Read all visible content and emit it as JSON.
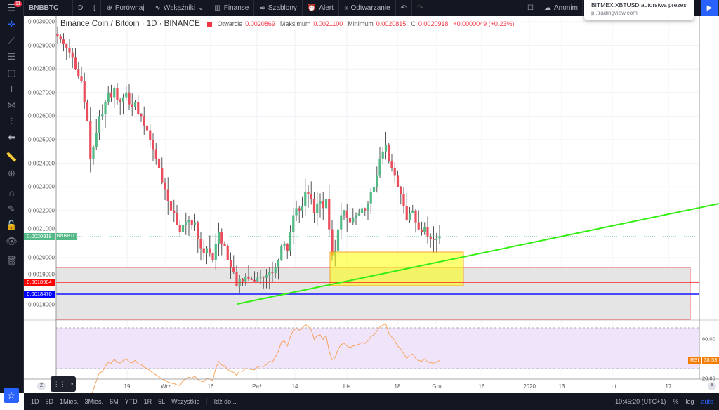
{
  "topbar": {
    "notif_count": "11",
    "symbol": "BNBBTC",
    "interval": "D",
    "compare": "Porównaj",
    "indicators": "Wskaźniki",
    "financials": "Finanse",
    "templates": "Szablony",
    "alert": "Alert",
    "replay": "Odtwarzanie",
    "account": "Anonim"
  },
  "popup": {
    "title": "BITMEX:XBTUSD autorstwa prezes...",
    "url": "pl.tradingview.com"
  },
  "legend": {
    "title": "Binance Coin / Bitcoin · 1D · BINANCE",
    "open_label": "Otwarcie",
    "open": "0.0020869",
    "high_label": "Maksimum",
    "high": "0.0021100",
    "low_label": "Minimum",
    "low": "0.0020815",
    "close_label": "C",
    "close": "0.0020918",
    "change": "+0.0000049 (+0.23%)"
  },
  "price_tags": {
    "last": "0.0020918",
    "symbol": "BNBBTC",
    "red_line": "0.0018984",
    "blue_line": "0.0018470"
  },
  "rsi": {
    "label": "RSI",
    "value": "38.53",
    "scale": [
      "60.00",
      "20.00"
    ]
  },
  "time_axis": {
    "left_btn": "Z",
    "right_btn": "A",
    "labels": [
      "19",
      "Wrz",
      "16",
      "Paź",
      "14",
      "Lis",
      "18",
      "Gru",
      "16",
      "2020",
      "13",
      "Lut",
      "17"
    ]
  },
  "bottombar": {
    "ranges": [
      "1D",
      "5D",
      "1Mies.",
      "3Mies.",
      "6M",
      "YTD",
      "1R",
      "5L",
      "Wszystkie"
    ],
    "goto": "Idź do...",
    "time": "10:45:20 (UTC+1)",
    "percent": "%",
    "log": "log",
    "auto": "auto"
  },
  "colors": {
    "up": "#53b987",
    "down": "#eb4d5c",
    "trend": "#00ff00",
    "red_line": "#ff0000",
    "blue_line": "#0000ff",
    "rect": "#ffff00",
    "accent": "#2962ff"
  },
  "chart_data": {
    "type": "candlestick",
    "title": "Binance Coin / Bitcoin · 1D · BINANCE",
    "ylim": [
      0.00175,
      0.00305
    ],
    "yticks": [
      "0.0030000",
      "0.0029000",
      "0.0028000",
      "0.0027000",
      "0.0026000",
      "0.0025000",
      "0.0024000",
      "0.0023000",
      "0.0022000",
      "0.0021000",
      "0.0020000",
      "0.0019000",
      "0.0018000"
    ],
    "closes": [
      0.00294,
      0.002925,
      0.002905,
      0.00289,
      0.00287,
      0.00285,
      0.0028,
      0.00277,
      0.00275,
      0.00266,
      0.00258,
      0.00242,
      0.00247,
      0.00253,
      0.0026,
      0.00261,
      0.00266,
      0.0027,
      0.00268,
      0.00272,
      0.00267,
      0.00266,
      0.00268,
      0.0027,
      0.00265,
      0.00264,
      0.00266,
      0.00261,
      0.0026,
      0.00256,
      0.00254,
      0.0025,
      0.00246,
      0.00242,
      0.00238,
      0.00232,
      0.00229,
      0.00224,
      0.0022,
      0.00219,
      0.00214,
      0.00211,
      0.00214,
      0.00215,
      0.00216,
      0.00214,
      0.00215,
      0.00208,
      0.00204,
      0.00202,
      0.00204,
      0.00202,
      0.00199,
      0.00206,
      0.00211,
      0.00206,
      0.00205,
      0.00199,
      0.00196,
      0.00194,
      0.00188,
      0.00191,
      0.0019,
      0.00192,
      0.00191,
      0.001905,
      0.0019,
      0.001915,
      0.00192,
      0.001915,
      0.001925,
      0.00194,
      0.001935,
      0.00196,
      0.00199,
      0.00205,
      0.00206,
      0.00203,
      0.00211,
      0.00218,
      0.00221,
      0.0022,
      0.00222,
      0.00228,
      0.00227,
      0.00225,
      0.00219,
      0.00223,
      0.00224,
      0.00221,
      0.00225,
      0.00212,
      0.00201,
      0.00203,
      0.00212,
      0.00218,
      0.0022,
      0.00217,
      0.00215,
      0.00217,
      0.00218,
      0.00219,
      0.00221,
      0.0022,
      0.00223,
      0.00228,
      0.0023,
      0.00235,
      0.00242,
      0.00245,
      0.00248,
      0.00241,
      0.00238,
      0.00235,
      0.0023,
      0.00227,
      0.00222,
      0.00216,
      0.00219,
      0.0022,
      0.00215,
      0.00212,
      0.00211,
      0.00213,
      0.00209,
      0.00208,
      0.002075,
      0.002082,
      0.0020918
    ],
    "hlines": [
      0.0018984,
      0.001847
    ],
    "rsi_ylim": [
      20,
      80
    ]
  }
}
